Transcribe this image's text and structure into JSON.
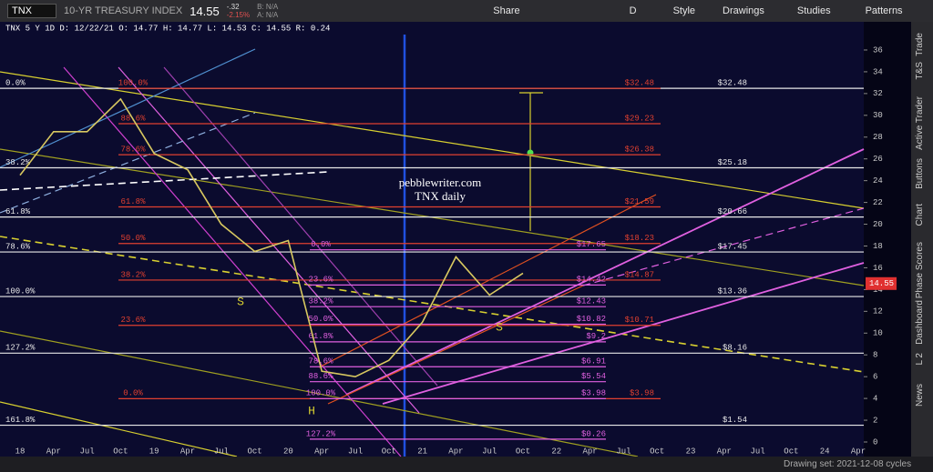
{
  "toolbar": {
    "symbol": "TNX",
    "instrument": "10-YR TREASURY INDEX",
    "last": "14.55",
    "change": "-.32",
    "change_pct": "-2.15%",
    "bid": "B: N/A",
    "ask": "A: N/A",
    "share": "Share",
    "period": "D",
    "style": "Style",
    "drawings": "Drawings",
    "studies": "Studies",
    "patterns": "Patterns"
  },
  "side_tabs": [
    "Trade",
    "T&S",
    "Active Trader",
    "Buttons",
    "Chart",
    "Phase Scores",
    "Dashboard",
    "L 2",
    "News"
  ],
  "footer": {
    "drawing_set": "Drawing set: 2021-12-08 cycles"
  },
  "chart_data": {
    "type": "line",
    "title": "TNX 5 Y 1D  D: 12/22/21  O: 14.77  H: 14.77  L: 14.53  C: 14.55  R: 0.24",
    "categories": [
      "18",
      "Apr",
      "Jul",
      "Oct",
      "19",
      "Apr",
      "Jul",
      "Oct",
      "20",
      "Apr",
      "Jul",
      "Oct",
      "21",
      "Apr",
      "Jul",
      "Oct",
      "22",
      "Apr",
      "Jul",
      "Oct",
      "23",
      "Apr",
      "Jul",
      "Oct",
      "24",
      "Apr"
    ],
    "series": [
      {
        "name": "TNX",
        "color": "#d8c860",
        "values": [
          24.5,
          28.5,
          28.5,
          31.5,
          26.5,
          25,
          20,
          17.5,
          18.5,
          6.5,
          6,
          7.5,
          11,
          17,
          13.5,
          15.5,
          null,
          null,
          null,
          null,
          null,
          null,
          null,
          null,
          null,
          null
        ]
      }
    ],
    "ylim": [
      0,
      37
    ],
    "yticks": [
      0,
      2,
      4,
      6,
      8,
      10,
      12,
      14,
      16,
      18,
      20,
      22,
      24,
      26,
      28,
      30,
      32,
      34,
      36
    ],
    "last_price": 14.55,
    "last_label": "14.55",
    "white_levels": [
      {
        "pct": "0.0%",
        "value": 32.48,
        "label": "$32.48"
      },
      {
        "pct": "38.2%",
        "value": 25.18,
        "label": "$25.18"
      },
      {
        "pct": "61.8%",
        "value": 20.66,
        "label": "$20.66"
      },
      {
        "pct": "78.6%",
        "value": 17.45,
        "label": "$17.45"
      },
      {
        "pct": "100.0%",
        "value": 13.36,
        "label": "$13.36"
      },
      {
        "pct": "127.2%",
        "value": 8.16,
        "label": "$8.16"
      },
      {
        "pct": "161.8%",
        "value": 1.54,
        "label": "$1.54"
      }
    ],
    "red_levels": [
      {
        "pct": "100.0%",
        "value": 32.48,
        "label": "$32.48"
      },
      {
        "pct": "88.6%",
        "value": 29.23,
        "label": "$29.23"
      },
      {
        "pct": "78.6%",
        "value": 26.38,
        "label": "$26.38"
      },
      {
        "pct": "61.8%",
        "value": 21.59,
        "label": "$21.59"
      },
      {
        "pct": "50.0%",
        "value": 18.23,
        "label": "$18.23"
      },
      {
        "pct": "38.2%",
        "value": 14.87,
        "label": "$14.87"
      },
      {
        "pct": "23.6%",
        "value": 10.71,
        "label": "$10.71"
      },
      {
        "pct": "0.0%",
        "value": 3.98,
        "label": "$3.98"
      }
    ],
    "magenta_levels": [
      {
        "pct": "0.0%",
        "value": 17.65,
        "label": "$17.65"
      },
      {
        "pct": "23.6%",
        "value": 14.42,
        "label": "$14.42"
      },
      {
        "pct": "38.2%",
        "value": 12.43,
        "label": "$12.43"
      },
      {
        "pct": "50.0%",
        "value": 10.82,
        "label": "$10.82"
      },
      {
        "pct": "61.8%",
        "value": 9.2,
        "label": "$9.2"
      },
      {
        "pct": "78.6%",
        "value": 6.91,
        "label": "$6.91"
      },
      {
        "pct": "88.6%",
        "value": 5.54,
        "label": "$5.54"
      },
      {
        "pct": "100.0%",
        "value": 3.98,
        "label": "$3.98"
      },
      {
        "pct": "127.2%",
        "value": 0.26,
        "label": "$0.26"
      }
    ],
    "notes": {
      "site": "pebblewriter.com",
      "subtitle": "TNX daily",
      "shoulder_left": "S",
      "shoulder_right": "S",
      "head": "H"
    }
  }
}
